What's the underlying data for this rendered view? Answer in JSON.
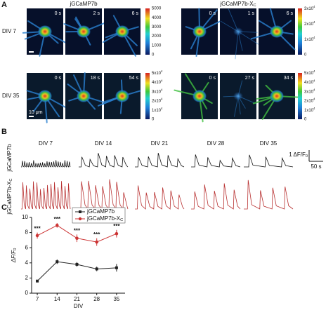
{
  "panel_a": {
    "label": "A",
    "scale_bar": "10 μm",
    "groups": [
      {
        "title": "jGCaMP7b",
        "rows": [
          {
            "div": "DIV 7",
            "times": [
              "0 s",
              "2 s",
              "6 s"
            ],
            "colorbar": [
              0,
              1000,
              2000,
              3000,
              4000,
              5000
            ]
          },
          {
            "div": "DIV 35",
            "times": [
              "0 s",
              "18 s",
              "54 s"
            ],
            "colorbar": [
              0,
              {
                "text": "1x10",
                "sup": "4"
              },
              {
                "text": "2x10",
                "sup": "4"
              },
              {
                "text": "3x10",
                "sup": "4"
              },
              {
                "text": "4x10",
                "sup": "4"
              },
              {
                "text": "5x10",
                "sup": "4"
              }
            ]
          }
        ]
      },
      {
        "title": {
          "text": "jGCaMP7b-X",
          "sub": "C"
        },
        "rows": [
          {
            "times": [
              "0 s",
              "1 s",
              "6 s"
            ],
            "colorbar": [
              0,
              {
                "text": "1x10",
                "sup": "4"
              },
              {
                "text": "2x10",
                "sup": "4"
              },
              {
                "text": "3x10",
                "sup": "4"
              }
            ]
          },
          {
            "times": [
              "0 s",
              "27 s",
              "34 s"
            ],
            "colorbar": [
              0,
              {
                "text": "1x10",
                "sup": "4"
              },
              {
                "text": "2x10",
                "sup": "4"
              },
              {
                "text": "3x10",
                "sup": "4"
              },
              {
                "text": "4x10",
                "sup": "4"
              },
              {
                "text": "5x10",
                "sup": "4"
              }
            ]
          }
        ]
      }
    ]
  },
  "panel_b": {
    "label": "B",
    "columns": [
      "DIV 7",
      "DIV 14",
      "DIV 21",
      "DIV 28",
      "DIV 35"
    ],
    "rows": [
      "jGCaMP7b",
      {
        "text": "jGCaMP7b-X",
        "sub": "C"
      }
    ],
    "scale_y": {
      "text": "1 ΔF/F",
      "sub": "0"
    },
    "scale_x": "50 s"
  },
  "chart_data": {
    "type": "line",
    "panel_label": "C",
    "x": [
      7,
      14,
      21,
      28,
      35
    ],
    "xlim": [
      5,
      38
    ],
    "xticks": [
      7,
      14,
      21,
      28,
      35
    ],
    "ylim": [
      0,
      10
    ],
    "yticks": [
      0,
      2,
      4,
      6,
      8,
      10
    ],
    "x_label": "DIV",
    "y_label": {
      "text": "ΔF/F",
      "sub": "0"
    },
    "legend": "top",
    "series": [
      {
        "name": "jGCaMP7b",
        "color": "#222222",
        "values": [
          1.6,
          4.15,
          3.8,
          3.2,
          3.35
        ],
        "errors": [
          0.15,
          0.3,
          0.3,
          0.3,
          0.5
        ]
      },
      {
        "name": "jGCaMP7b-X",
        "name_sub": "C",
        "color": "#cc3333",
        "values": [
          7.6,
          8.95,
          7.25,
          6.75,
          7.85
        ],
        "errors": [
          0.4,
          0.3,
          0.5,
          0.5,
          0.5
        ],
        "annotations": [
          "***",
          "***",
          "***",
          "***",
          "***"
        ]
      }
    ]
  }
}
